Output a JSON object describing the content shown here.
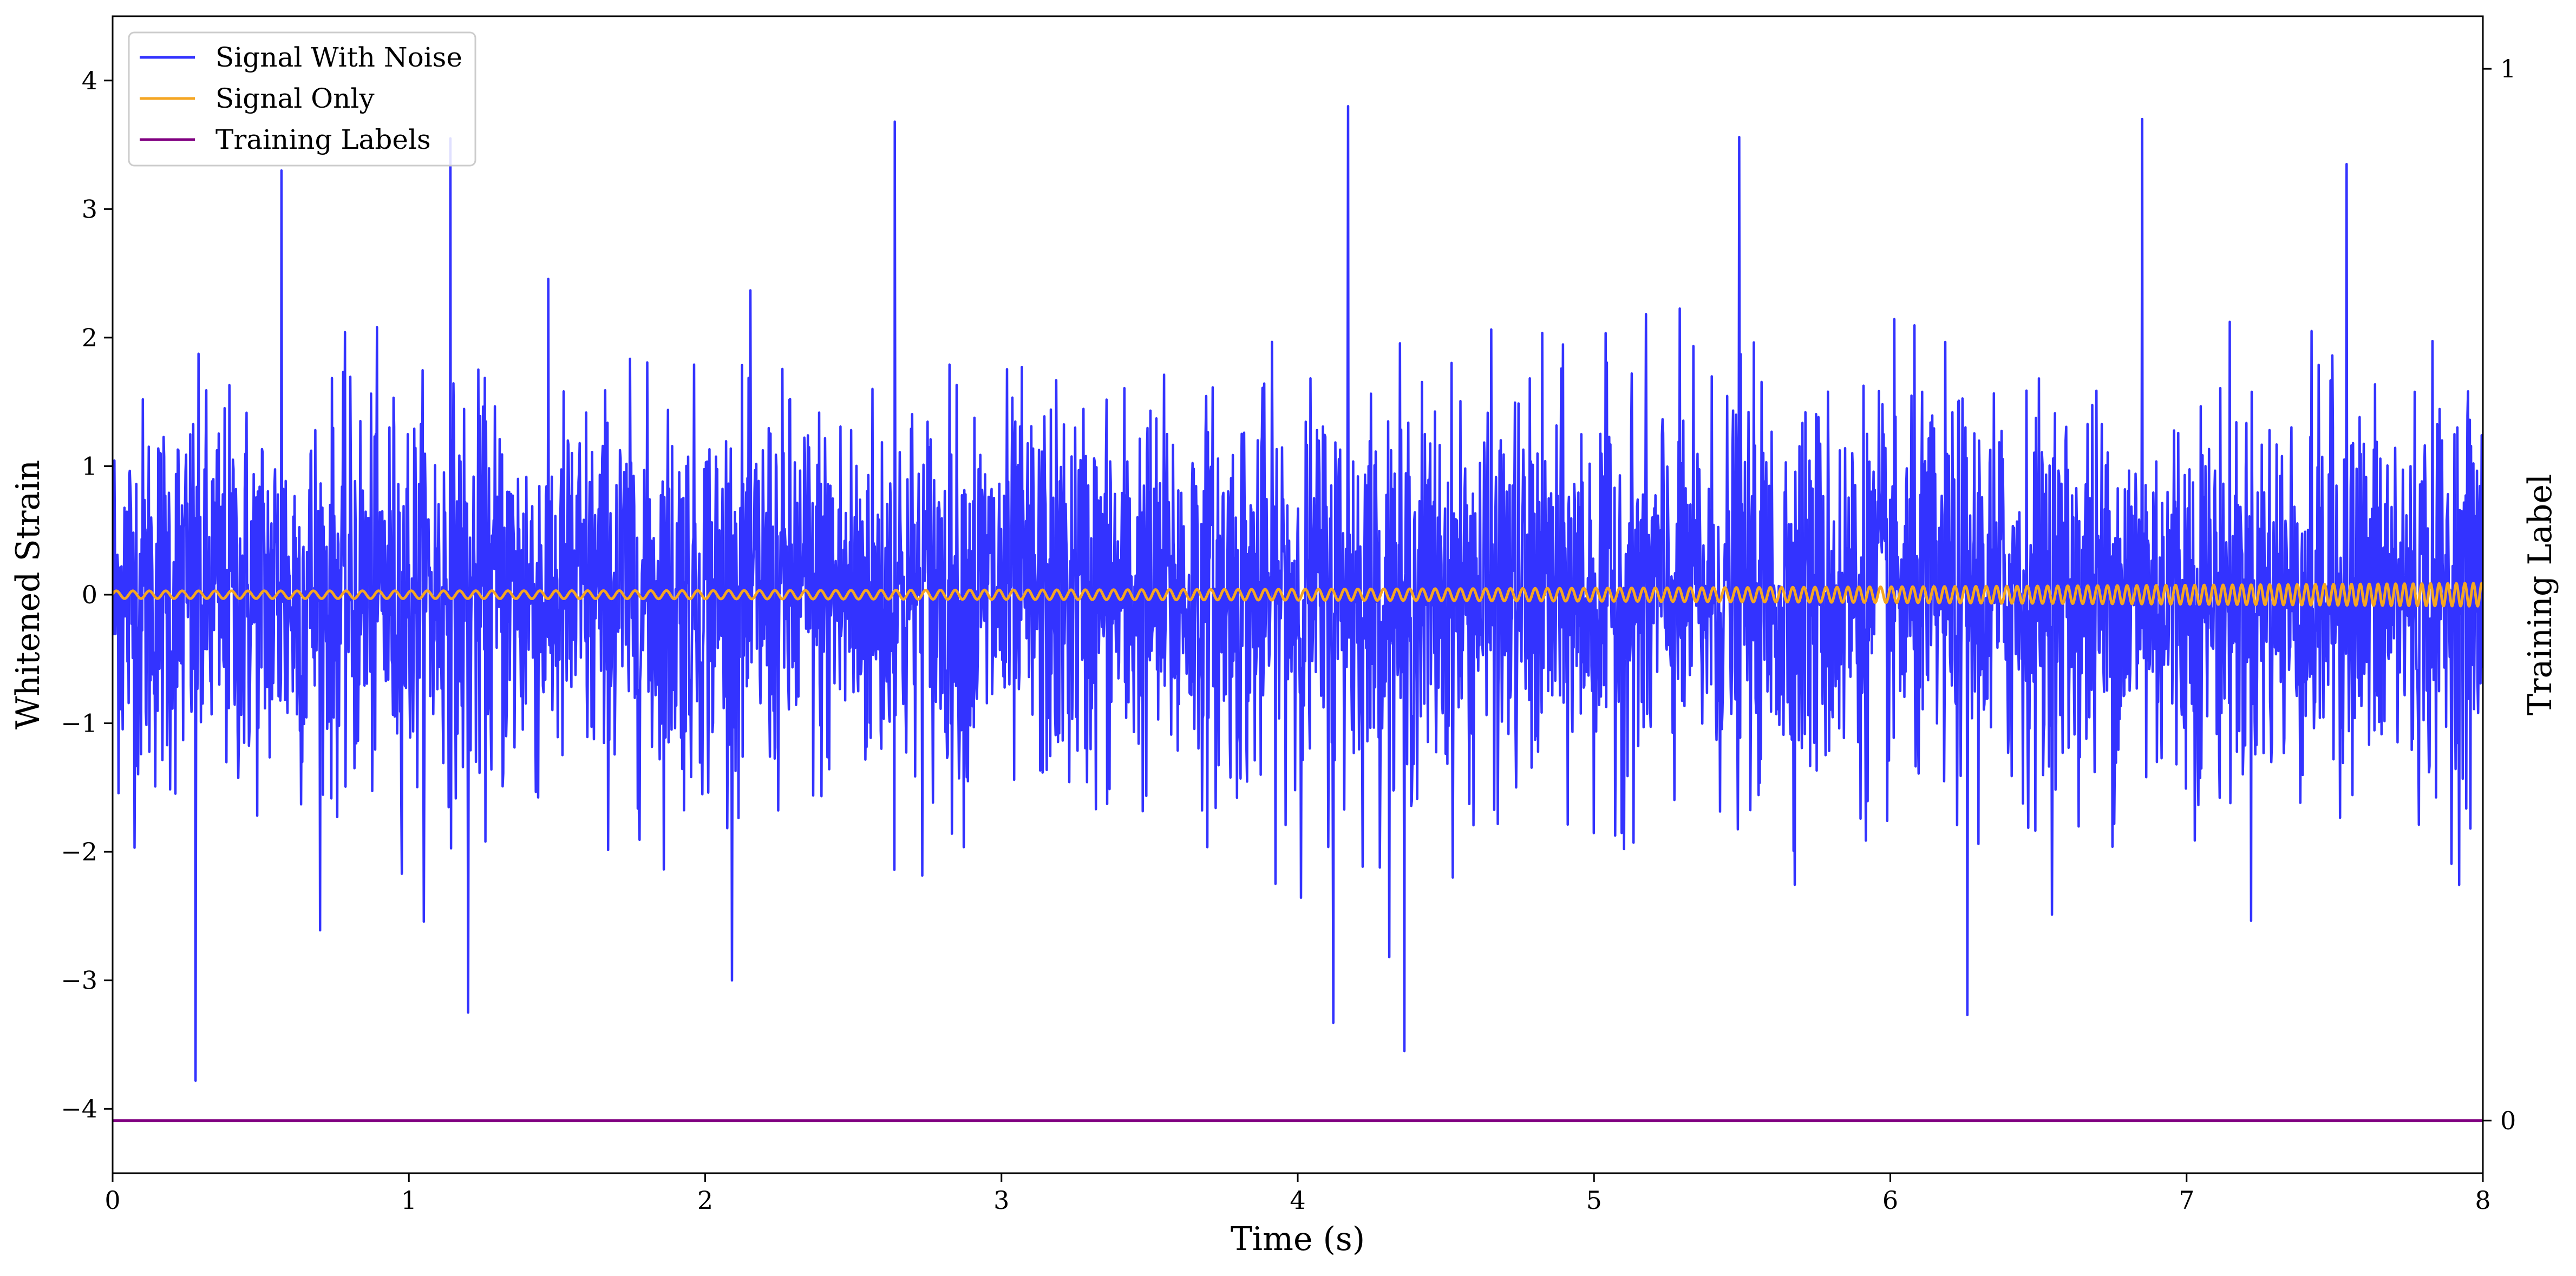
{
  "chart_data": {
    "type": "line",
    "title": "",
    "xlabel": "Time (s)",
    "ylabel": "Whitened Strain",
    "y2label": "Training Label",
    "xlim": [
      0,
      8
    ],
    "ylim": [
      -4.5,
      4.5
    ],
    "y2lim": [
      -0.05,
      1.05
    ],
    "xticks": [
      0,
      1,
      2,
      3,
      4,
      5,
      6,
      7,
      8
    ],
    "yticks": [
      -4,
      -3,
      -2,
      -1,
      0,
      1,
      2,
      3,
      4
    ],
    "y2ticks": [
      0,
      1
    ],
    "xtick_labels": [
      "0",
      "1",
      "2",
      "3",
      "4",
      "5",
      "6",
      "7",
      "8"
    ],
    "ytick_labels": [
      "−4",
      "−3",
      "−2",
      "−1",
      "0",
      "1",
      "2",
      "3",
      "4"
    ],
    "y2tick_labels": [
      "0",
      "1"
    ],
    "grid": false,
    "legend_position": "top-left",
    "series": [
      {
        "name": "Signal With Noise",
        "color": "#3333ff",
        "axis": "left",
        "style": "noise",
        "std": 0.75,
        "mean": 0.0,
        "points_plotted": 4000,
        "notable_extremes": [
          {
            "x": 0.28,
            "y": -3.78
          },
          {
            "x": 0.57,
            "y": 3.3
          },
          {
            "x": 1.14,
            "y": 3.55
          },
          {
            "x": 1.2,
            "y": -3.25
          },
          {
            "x": 2.64,
            "y": 3.68
          },
          {
            "x": 4.17,
            "y": 3.8
          },
          {
            "x": 4.12,
            "y": -3.33
          },
          {
            "x": 4.36,
            "y": -3.55
          },
          {
            "x": 5.49,
            "y": 3.56
          },
          {
            "x": 6.85,
            "y": 3.7
          },
          {
            "x": 7.54,
            "y": 3.35
          },
          {
            "x": 6.26,
            "y": -3.27
          }
        ]
      },
      {
        "name": "Signal Only",
        "color": "#f5a623",
        "axis": "left",
        "style": "chirp",
        "start_frequency_hz": 18,
        "end_frequency_hz": 35,
        "start_amplitude": 0.03,
        "end_amplitude": 0.09
      },
      {
        "name": "Training Labels",
        "color": "#800080",
        "axis": "right",
        "style": "constant",
        "x": [
          0,
          8
        ],
        "values": [
          0,
          0
        ]
      }
    ]
  }
}
